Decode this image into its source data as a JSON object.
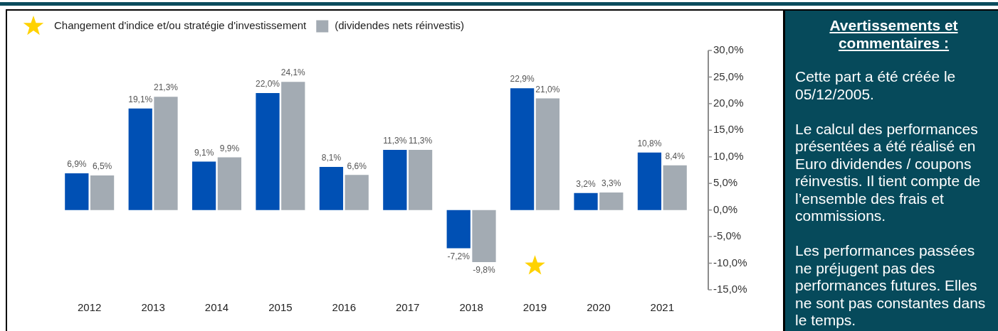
{
  "chart_data": [
    {
      "type": "bar",
      "categories": [
        "2012",
        "2013",
        "2014",
        "2015",
        "2016",
        "2017",
        "2018",
        "2019",
        "2020",
        "2021"
      ],
      "series": [
        {
          "name": "Changement d'indice et/ou stratégie d'investissement",
          "type": "scatter",
          "marker": "star",
          "color": "#ffd200",
          "values": [
            null,
            null,
            null,
            null,
            null,
            null,
            null,
            -10.5,
            null,
            null
          ]
        },
        {
          "color": "#0050b4",
          "values": [
            6.9,
            19.1,
            9.1,
            22.0,
            8.1,
            11.3,
            -7.2,
            22.9,
            3.2,
            10.8
          ],
          "value_labels": [
            "6,9%",
            "19,1%",
            "9,1%",
            "22,0%",
            "8,1%",
            "11,3%",
            "-7,2%",
            "22,9%",
            "3,2%",
            "10,8%"
          ]
        },
        {
          "name": "(dividendes nets réinvestis)",
          "color": "#a3abb3",
          "values": [
            6.5,
            21.3,
            9.9,
            24.1,
            6.6,
            11.3,
            -9.8,
            21.0,
            3.3,
            8.4
          ],
          "value_labels": [
            "6,5%",
            "21,3%",
            "9,9%",
            "24,1%",
            "6,6%",
            "11,3%",
            "-9,8%",
            "21,0%",
            "3,3%",
            "8,4%"
          ]
        }
      ],
      "ylim": [
        -15,
        30
      ],
      "yticks": [
        {
          "value": -15,
          "label": "-15,0%"
        },
        {
          "value": -10,
          "label": "-10,0%"
        },
        {
          "value": -5,
          "label": "-5,0%"
        },
        {
          "value": 0,
          "label": "0,0%"
        },
        {
          "value": 5,
          "label": "5,0%"
        },
        {
          "value": 10,
          "label": "10,0%"
        },
        {
          "value": 15,
          "label": "15,0%"
        },
        {
          "value": 20,
          "label": "20,0%"
        },
        {
          "value": 25,
          "label": "25,0%"
        },
        {
          "value": 30,
          "label": "30,0%"
        }
      ],
      "legend": "top",
      "grid": false
    },
    {
      "type": "other",
      "title": "Avertissements et commentaires :",
      "annotations": [
        "Cette part a été créée le 05/12/2005.",
        "Le calcul des performances présentées a été réalisé en Euro dividendes / coupons réinvestis. Il tient compte de l’ensemble des frais et commissions.",
        "Les performances passées ne préjugent pas des performances futures. Elles ne sont pas constantes dans le temps."
      ]
    }
  ]
}
